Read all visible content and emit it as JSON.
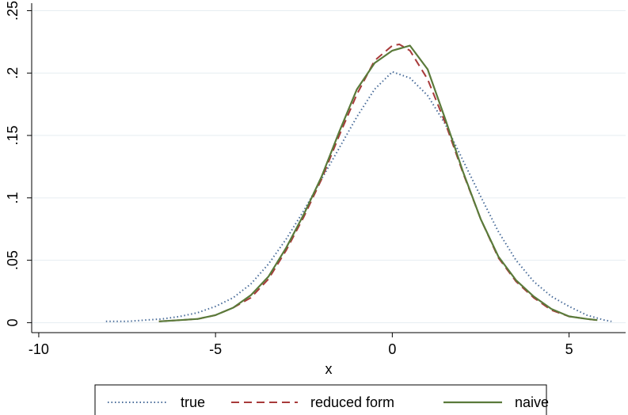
{
  "chart_data": {
    "type": "line",
    "title": "",
    "xlabel": "x",
    "ylabel": "",
    "xlim": [
      -10.2,
      6.6
    ],
    "ylim": [
      -0.008,
      0.256
    ],
    "x_ticks": [
      {
        "value": -10,
        "label": "-10"
      },
      {
        "value": -5,
        "label": "-5"
      },
      {
        "value": 0,
        "label": "0"
      },
      {
        "value": 5,
        "label": "5"
      }
    ],
    "y_ticks": [
      {
        "value": 0,
        "label": "0"
      },
      {
        "value": 0.05,
        "label": ".05"
      },
      {
        "value": 0.1,
        "label": ".1"
      },
      {
        "value": 0.15,
        "label": ".15"
      },
      {
        "value": 0.2,
        "label": ".2"
      },
      {
        "value": 0.25,
        "label": ".25"
      }
    ],
    "grid": "horizontal",
    "legend_position": "bottom",
    "series": [
      {
        "name": "true",
        "color": "#4a6d9a",
        "style": "dotted",
        "x": [
          -8.1,
          -7.5,
          -7.0,
          -6.5,
          -6.0,
          -5.5,
          -5.0,
          -4.5,
          -4.0,
          -3.5,
          -3.0,
          -2.5,
          -2.0,
          -1.5,
          -1.0,
          -0.5,
          0.0,
          0.5,
          1.0,
          1.5,
          2.0,
          2.5,
          3.0,
          3.5,
          4.0,
          4.5,
          5.0,
          5.5,
          6.0,
          6.2
        ],
        "y": [
          0.001,
          0.001,
          0.002,
          0.003,
          0.005,
          0.008,
          0.013,
          0.02,
          0.031,
          0.047,
          0.067,
          0.09,
          0.115,
          0.14,
          0.165,
          0.187,
          0.201,
          0.196,
          0.182,
          0.159,
          0.13,
          0.101,
          0.073,
          0.05,
          0.033,
          0.021,
          0.013,
          0.006,
          0.002,
          0.001
        ]
      },
      {
        "name": "reduced form",
        "color": "#a83a3a",
        "style": "dashed",
        "x": [
          -6.6,
          -6.0,
          -5.5,
          -5.0,
          -4.5,
          -4.0,
          -3.5,
          -3.0,
          -2.5,
          -2.0,
          -1.5,
          -1.0,
          -0.5,
          0.0,
          0.2,
          0.5,
          1.0,
          1.5,
          2.0,
          2.5,
          3.0,
          3.5,
          4.0,
          4.5,
          5.0,
          5.5,
          5.8
        ],
        "y": [
          0.001,
          0.002,
          0.003,
          0.006,
          0.012,
          0.02,
          0.035,
          0.058,
          0.085,
          0.115,
          0.15,
          0.183,
          0.21,
          0.222,
          0.223,
          0.218,
          0.195,
          0.16,
          0.12,
          0.083,
          0.052,
          0.033,
          0.02,
          0.01,
          0.005,
          0.003,
          0.002
        ]
      },
      {
        "name": "naive",
        "color": "#5a7a3a",
        "style": "solid",
        "x": [
          -6.6,
          -6.0,
          -5.5,
          -5.0,
          -4.5,
          -4.0,
          -3.5,
          -3.0,
          -2.5,
          -2.0,
          -1.5,
          -1.0,
          -0.5,
          0.0,
          0.5,
          1.0,
          1.5,
          2.0,
          2.5,
          3.0,
          3.5,
          4.0,
          4.5,
          5.0,
          5.5,
          5.8
        ],
        "y": [
          0.001,
          0.002,
          0.003,
          0.006,
          0.012,
          0.022,
          0.037,
          0.06,
          0.087,
          0.117,
          0.153,
          0.187,
          0.208,
          0.218,
          0.222,
          0.203,
          0.163,
          0.121,
          0.083,
          0.053,
          0.034,
          0.021,
          0.011,
          0.005,
          0.003,
          0.002
        ]
      }
    ]
  }
}
